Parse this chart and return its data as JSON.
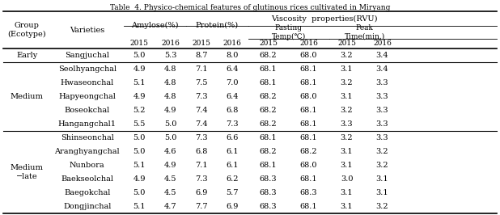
{
  "title": "Table  4. Physico-chemical features of glutinous rices cultivated in Miryang",
  "rows": [
    {
      "group": "Early",
      "variety": "Sangjuchal",
      "am15": "5.0",
      "am16": "5.3",
      "pr15": "8.7",
      "pr16": "8.0",
      "pt15": "68.2",
      "pt16": "68.0",
      "pk15": "3.2",
      "pk16": "3.4"
    },
    {
      "group": "Medium",
      "variety": "Seolhyangchal",
      "am15": "4.9",
      "am16": "4.8",
      "pr15": "7.1",
      "pr16": "6.4",
      "pt15": "68.1",
      "pt16": "68.1",
      "pk15": "3.1",
      "pk16": "3.4"
    },
    {
      "group": "Medium",
      "variety": "Hwaseonchal",
      "am15": "5.1",
      "am16": "4.8",
      "pr15": "7.5",
      "pr16": "7.0",
      "pt15": "68.1",
      "pt16": "68.1",
      "pk15": "3.2",
      "pk16": "3.3"
    },
    {
      "group": "Medium",
      "variety": "Hapyeongchal",
      "am15": "4.9",
      "am16": "4.8",
      "pr15": "7.3",
      "pr16": "6.4",
      "pt15": "68.2",
      "pt16": "68.0",
      "pk15": "3.1",
      "pk16": "3.3"
    },
    {
      "group": "Medium",
      "variety": "Boseokchal",
      "am15": "5.2",
      "am16": "4.9",
      "pr15": "7.4",
      "pr16": "6.8",
      "pt15": "68.2",
      "pt16": "68.1",
      "pk15": "3.2",
      "pk16": "3.3"
    },
    {
      "group": "Medium",
      "variety": "Hangangchal1",
      "am15": "5.5",
      "am16": "5.0",
      "pr15": "7.4",
      "pr16": "7.3",
      "pt15": "68.2",
      "pt16": "68.1",
      "pk15": "3.3",
      "pk16": "3.3"
    },
    {
      "group": "Medium\n−late",
      "variety": "Shinseonchal",
      "am15": "5.0",
      "am16": "5.0",
      "pr15": "7.3",
      "pr16": "6.6",
      "pt15": "68.1",
      "pt16": "68.1",
      "pk15": "3.2",
      "pk16": "3.3"
    },
    {
      "group": "Medium\n−late",
      "variety": "Aranghyangchal",
      "am15": "5.0",
      "am16": "4.6",
      "pr15": "6.8",
      "pr16": "6.1",
      "pt15": "68.2",
      "pt16": "68.2",
      "pk15": "3.1",
      "pk16": "3.2"
    },
    {
      "group": "Medium\n−late",
      "variety": "Nunbora",
      "am15": "5.1",
      "am16": "4.9",
      "pr15": "7.1",
      "pr16": "6.1",
      "pt15": "68.1",
      "pt16": "68.0",
      "pk15": "3.1",
      "pk16": "3.2"
    },
    {
      "group": "Medium\n−late",
      "variety": "Baekseolchal",
      "am15": "4.9",
      "am16": "4.5",
      "pr15": "7.3",
      "pr16": "6.2",
      "pt15": "68.3",
      "pt16": "68.1",
      "pk15": "3.0",
      "pk16": "3.1"
    },
    {
      "group": "Medium\n−late",
      "variety": "Baegokchal",
      "am15": "5.0",
      "am16": "4.5",
      "pr15": "6.9",
      "pr16": "5.7",
      "pt15": "68.3",
      "pt16": "68.3",
      "pk15": "3.1",
      "pk16": "3.1"
    },
    {
      "group": "Medium\n−late",
      "variety": "Dongjinchal",
      "am15": "5.1",
      "am16": "4.7",
      "pr15": "7.7",
      "pr16": "6.9",
      "pt15": "68.3",
      "pt16": "68.1",
      "pk15": "3.1",
      "pk16": "3.2"
    }
  ],
  "background_color": "#ffffff",
  "text_color": "#000000",
  "line_color": "#000000",
  "title_fontsize": 6.5,
  "header_fontsize": 7.0,
  "data_fontsize": 7.0
}
